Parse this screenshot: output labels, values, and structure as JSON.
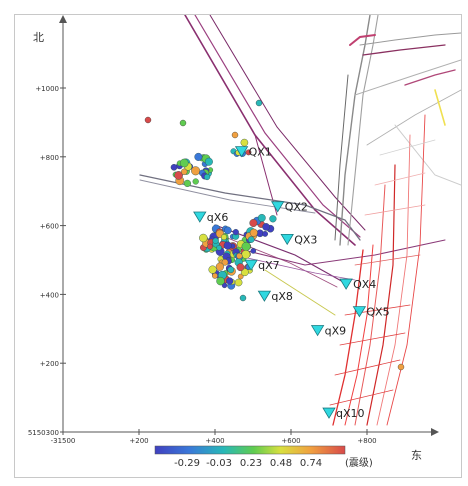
{
  "map": {
    "axes": {
      "north_label": "北",
      "east_label": "东",
      "y_ticks": [
        {
          "label": "+1000",
          "v": 1000
        },
        {
          "label": "+800",
          "v": 800
        },
        {
          "label": "+600",
          "v": 600
        },
        {
          "label": "+400",
          "v": 400
        },
        {
          "label": "+200",
          "v": 200
        },
        {
          "label": "5150300",
          "v": 0
        }
      ],
      "x_ticks": [
        {
          "label": "-31500",
          "v": 0
        },
        {
          "label": "+200",
          "v": 200
        },
        {
          "label": "+400",
          "v": 400
        },
        {
          "label": "+600",
          "v": 600
        },
        {
          "label": "+800",
          "v": 800
        }
      ]
    },
    "stations": [
      {
        "label": "QX1",
        "e": 470,
        "n": 815
      },
      {
        "label": "QX2",
        "e": 565,
        "n": 655
      },
      {
        "label": "QX3",
        "e": 590,
        "n": 560
      },
      {
        "label": "qX6",
        "e": 360,
        "n": 625
      },
      {
        "label": "qX7",
        "e": 495,
        "n": 485
      },
      {
        "label": "qX8",
        "e": 530,
        "n": 395
      },
      {
        "label": "QX4",
        "e": 745,
        "n": 430
      },
      {
        "label": "QX5",
        "e": 780,
        "n": 350
      },
      {
        "label": "qX9",
        "e": 670,
        "n": 295
      },
      {
        "label": "qX10",
        "e": 700,
        "n": 55
      }
    ],
    "colorbar": {
      "tick_labels": [
        "-0.29",
        "-0.03",
        "0.23",
        "0.48",
        "0.74"
      ],
      "unit_label": "(震级)",
      "colors": [
        "#4040c0",
        "#3a78d8",
        "#28b8b8",
        "#60cc50",
        "#d8e040",
        "#f0a040",
        "#d84a4a"
      ]
    }
  }
}
